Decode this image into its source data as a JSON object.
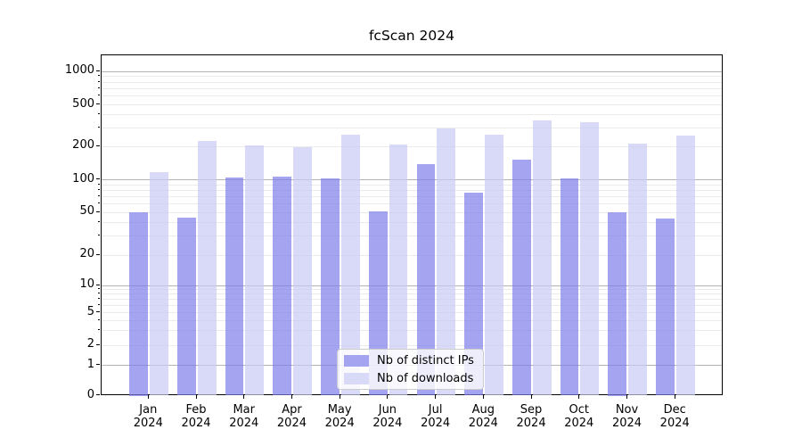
{
  "title": "fcScan 2024",
  "chart_data": {
    "type": "bar",
    "title": "fcScan 2024",
    "categories": [
      "Jan 2024",
      "Feb 2024",
      "Mar 2024",
      "Apr 2024",
      "May 2024",
      "Jun 2024",
      "Jul 2024",
      "Aug 2024",
      "Sep 2024",
      "Oct 2024",
      "Nov 2024",
      "Dec 2024"
    ],
    "x_tick_months": [
      "Jan",
      "Feb",
      "Mar",
      "Apr",
      "May",
      "Jun",
      "Jul",
      "Aug",
      "Sep",
      "Oct",
      "Nov",
      "Dec"
    ],
    "x_tick_year": "2024",
    "series": [
      {
        "name": "Nb of distinct IPs",
        "color": "#a4a4f0",
        "values": [
          50,
          45,
          104,
          106,
          103,
          51,
          138,
          76,
          151,
          103,
          50,
          44
        ]
      },
      {
        "name": "Nb of downloads",
        "color": "#d9d9f8",
        "values": [
          118,
          225,
          206,
          198,
          262,
          210,
          300,
          260,
          352,
          338,
          215,
          255
        ]
      }
    ],
    "xlabel": "",
    "ylabel": "",
    "yscale": "symlog",
    "y_ticks": [
      0,
      1,
      2,
      5,
      10,
      20,
      50,
      100,
      200,
      500,
      1000
    ],
    "y_tick_labels": [
      "0",
      "1",
      "2",
      "5",
      "10",
      "20",
      "50",
      "100",
      "200",
      "500",
      "1000"
    ],
    "ylim": [
      0,
      1370
    ],
    "grid": {
      "on": true,
      "major_values": [
        1,
        10,
        100,
        1000
      ],
      "minor_values": [
        2,
        3,
        4,
        5,
        6,
        7,
        8,
        9,
        20,
        30,
        40,
        50,
        60,
        70,
        80,
        90,
        200,
        300,
        400,
        500,
        600,
        700,
        800,
        900
      ],
      "major_color": "#b3b3b3",
      "minor_color": "#ebebeb"
    },
    "legend": {
      "position": "lower center"
    },
    "axis_pixel_map": {
      "comment_layout_hint": "y pixel (relative to plot top) for each anchor value of the symlog axis",
      "anchor_values": [
        0,
        1,
        2,
        5,
        10,
        20,
        50,
        100,
        200,
        500,
        1000
      ],
      "anchor_y": [
        381.5,
        347.5,
        325,
        288.5,
        258,
        224,
        176,
        139.5,
        102.3,
        55.5,
        18
      ]
    },
    "bar_alpha": 0.7
  }
}
